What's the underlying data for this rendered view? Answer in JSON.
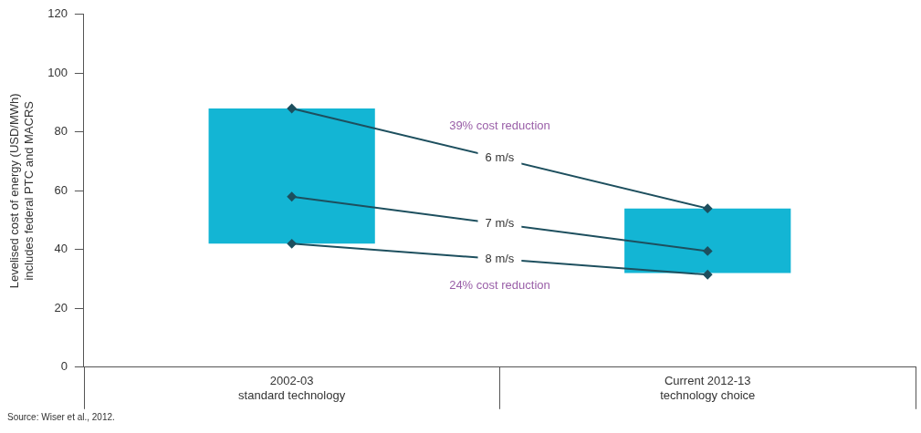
{
  "chart_data": {
    "type": "bar",
    "categories": [
      "2002-03\nstandard technology",
      "Current 2012-13\ntechnology choice"
    ],
    "ylabel": "Levelised cost of energy (USD/MWh)\nincludes federal PTC and MACRS",
    "series": [
      {
        "color": "#13b5d4",
        "values": [
          46,
          22
        ],
        "base": [
          42,
          32
        ]
      },
      {
        "type": "line",
        "name": "6 m/s",
        "color": "#1d4f5e",
        "values": [
          88,
          54
        ]
      },
      {
        "type": "line",
        "name": "7 m/s",
        "color": "#1d4f5e",
        "values": [
          58,
          39.5
        ]
      },
      {
        "type": "line",
        "name": "8 m/s",
        "color": "#1d4f5e",
        "values": [
          42,
          31.5
        ]
      }
    ],
    "ylim": [
      0,
      120
    ],
    "yticks": [
      0,
      20,
      40,
      60,
      80,
      100,
      120
    ],
    "grid": false,
    "legend": false,
    "marker": "diamond",
    "line_style": "solid",
    "annotations": [
      "39% cost reduction",
      "24% cost reduction",
      "Source: Wiser et al., 2012."
    ]
  }
}
